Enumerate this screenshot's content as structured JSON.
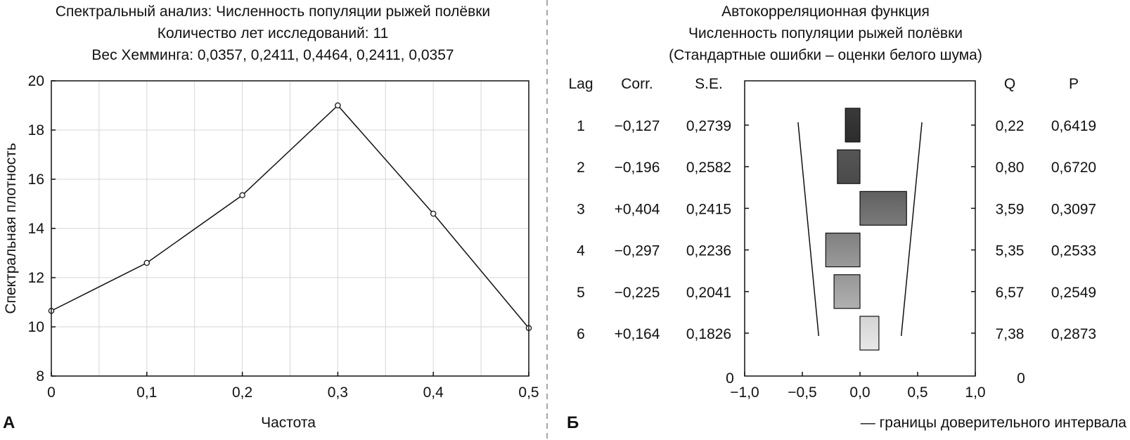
{
  "figure": {
    "divider_color": "#8a8a8a",
    "panel_a_letter": "А",
    "panel_b_letter": "Б"
  },
  "chart_data": [
    {
      "type": "line",
      "title_lines": [
        "Спектральный анализ: Численность популяции рыжей полёвки",
        "Количество лет исследований: 11",
        "Вес Хемминга: 0,0357, 0,2411, 0,4464, 0,2411, 0,0357"
      ],
      "xlabel": "Частота",
      "ylabel": "Спектральная плотность",
      "x": [
        0,
        0.1,
        0.2,
        0.3,
        0.4,
        0.5
      ],
      "y": [
        10.65,
        12.6,
        15.35,
        19.0,
        14.6,
        9.95
      ],
      "xlim": [
        0,
        0.5
      ],
      "ylim": [
        8,
        20
      ],
      "xticks": [
        0,
        0.1,
        0.2,
        0.3,
        0.4,
        0.5
      ],
      "xtick_labels": [
        "0",
        "0,1",
        "0,2",
        "0,3",
        "0,4",
        "0,5"
      ],
      "yticks": [
        8,
        10,
        12,
        14,
        16,
        18,
        20
      ],
      "ytick_labels": [
        "8",
        "10",
        "12",
        "14",
        "16",
        "18",
        "20"
      ],
      "grid": true,
      "line_color": "#111111",
      "grid_color": "#d6d6d6"
    },
    {
      "type": "bar",
      "orientation": "horizontal",
      "title_lines": [
        "Автокорреляционная функция",
        "Численность популяции рыжей полёвки",
        "(Стандартные ошибки – оценки белого шума)"
      ],
      "columns": {
        "lag": "Lag",
        "corr": "Corr.",
        "se": "S.E.",
        "q": "Q",
        "p": "P"
      },
      "lags": [
        1,
        2,
        3,
        4,
        5,
        6
      ],
      "lag_labels": [
        "1",
        "2",
        "3",
        "4",
        "5",
        "6"
      ],
      "corr": [
        -0.127,
        -0.196,
        0.404,
        -0.297,
        -0.225,
        0.164
      ],
      "corr_labels": [
        "−0,127",
        "−0,196",
        "+0,404",
        "−0,297",
        "−0,225",
        "+0,164"
      ],
      "se": [
        0.2739,
        0.2582,
        0.2415,
        0.2236,
        0.2041,
        0.1826
      ],
      "se_labels": [
        "0,2739",
        "0,2582",
        "0,2415",
        "0,2236",
        "0,2041",
        "0,1826"
      ],
      "q_labels": [
        "0,22",
        "0,80",
        "3,59",
        "5,35",
        "6,57",
        "7,38"
      ],
      "p_labels": [
        "0,6419",
        "0,6720",
        "0,3097",
        "0,2533",
        "0,2549",
        "0,2873"
      ],
      "zero_row_left_label": "0",
      "zero_row_right_label": "0",
      "xlim": [
        -1.0,
        1.0
      ],
      "xticks": [
        -1.0,
        -0.5,
        0,
        0.5,
        1.0
      ],
      "xtick_labels": [
        "−1,0",
        "−0,5",
        "0,0",
        "0,5",
        "1,0"
      ],
      "bar_fill_top": [
        "#3a3a3a",
        "#555555",
        "#606060",
        "#808080",
        "#979797",
        "#d4d4d4"
      ],
      "bar_fill_bottom": [
        "#2c2c2c",
        "#4a4a4a",
        "#7a7a7a",
        "#9a9a9a",
        "#b0b0b0",
        "#e8e8e8"
      ],
      "confidence_bound_lags": [
        1,
        6
      ],
      "confidence_bound_values": [
        0.537,
        0.358
      ],
      "legend_text": "— границы доверительного интервала",
      "legend_position": "bottom-right"
    }
  ]
}
